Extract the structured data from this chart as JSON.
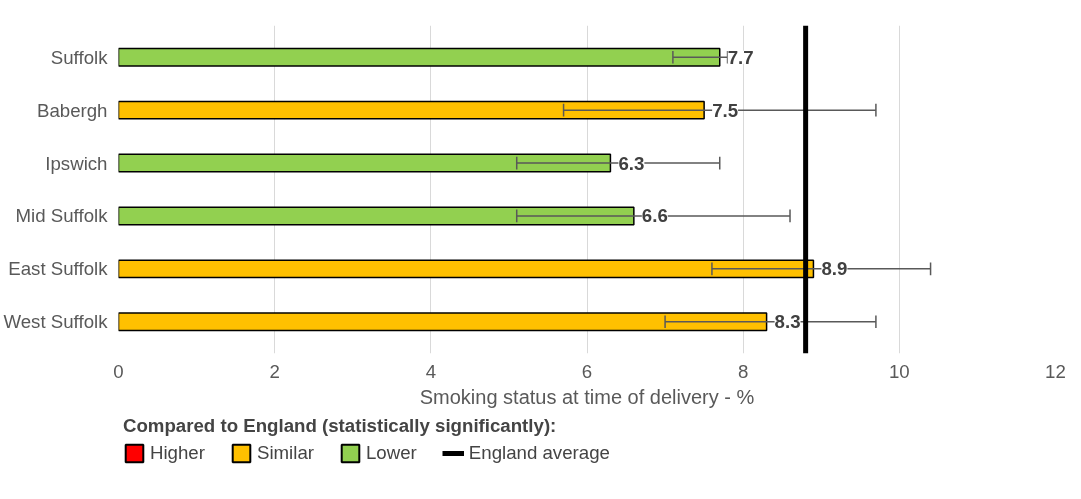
{
  "chart_data": {
    "type": "bar",
    "orientation": "horizontal",
    "stacked": true,
    "categories": [
      "Suffolk",
      "Babergh",
      "Ipswich",
      "Mid Suffolk",
      "East Suffolk",
      "West Suffolk"
    ],
    "series": [
      {
        "name": "Higher",
        "color": "#ff0000",
        "values": [
          null,
          null,
          null,
          null,
          null,
          null
        ],
        "errors": [
          null,
          null,
          null,
          null,
          null,
          null
        ]
      },
      {
        "name": "Similar",
        "color": "#ffc000",
        "values": [
          null,
          7.5,
          null,
          null,
          8.9,
          8.3
        ],
        "errors": [
          null,
          [
            5.7,
            9.7
          ],
          null,
          null,
          [
            7.6,
            10.4
          ],
          [
            7.0,
            9.7
          ]
        ]
      },
      {
        "name": "Lower",
        "color": "#92d050",
        "values": [
          7.7,
          null,
          6.3,
          6.6,
          null,
          null
        ],
        "errors": [
          [
            7.1,
            7.8
          ],
          null,
          [
            5.1,
            7.7
          ],
          [
            5.1,
            8.6
          ],
          null,
          null
        ]
      }
    ],
    "xlabel": "Smoking status at time of delivery - %",
    "xlim": [
      0,
      12
    ],
    "xticks": [
      0,
      2,
      4,
      6,
      8,
      10,
      12
    ],
    "grid": "x",
    "data_labels": true,
    "legend": "bottom",
    "legend_title": "Compared to England (statistically significantly):",
    "ref_lines": [
      {
        "axis": "x",
        "value": 8.8,
        "label": "England average",
        "color": "#000000"
      }
    ]
  }
}
